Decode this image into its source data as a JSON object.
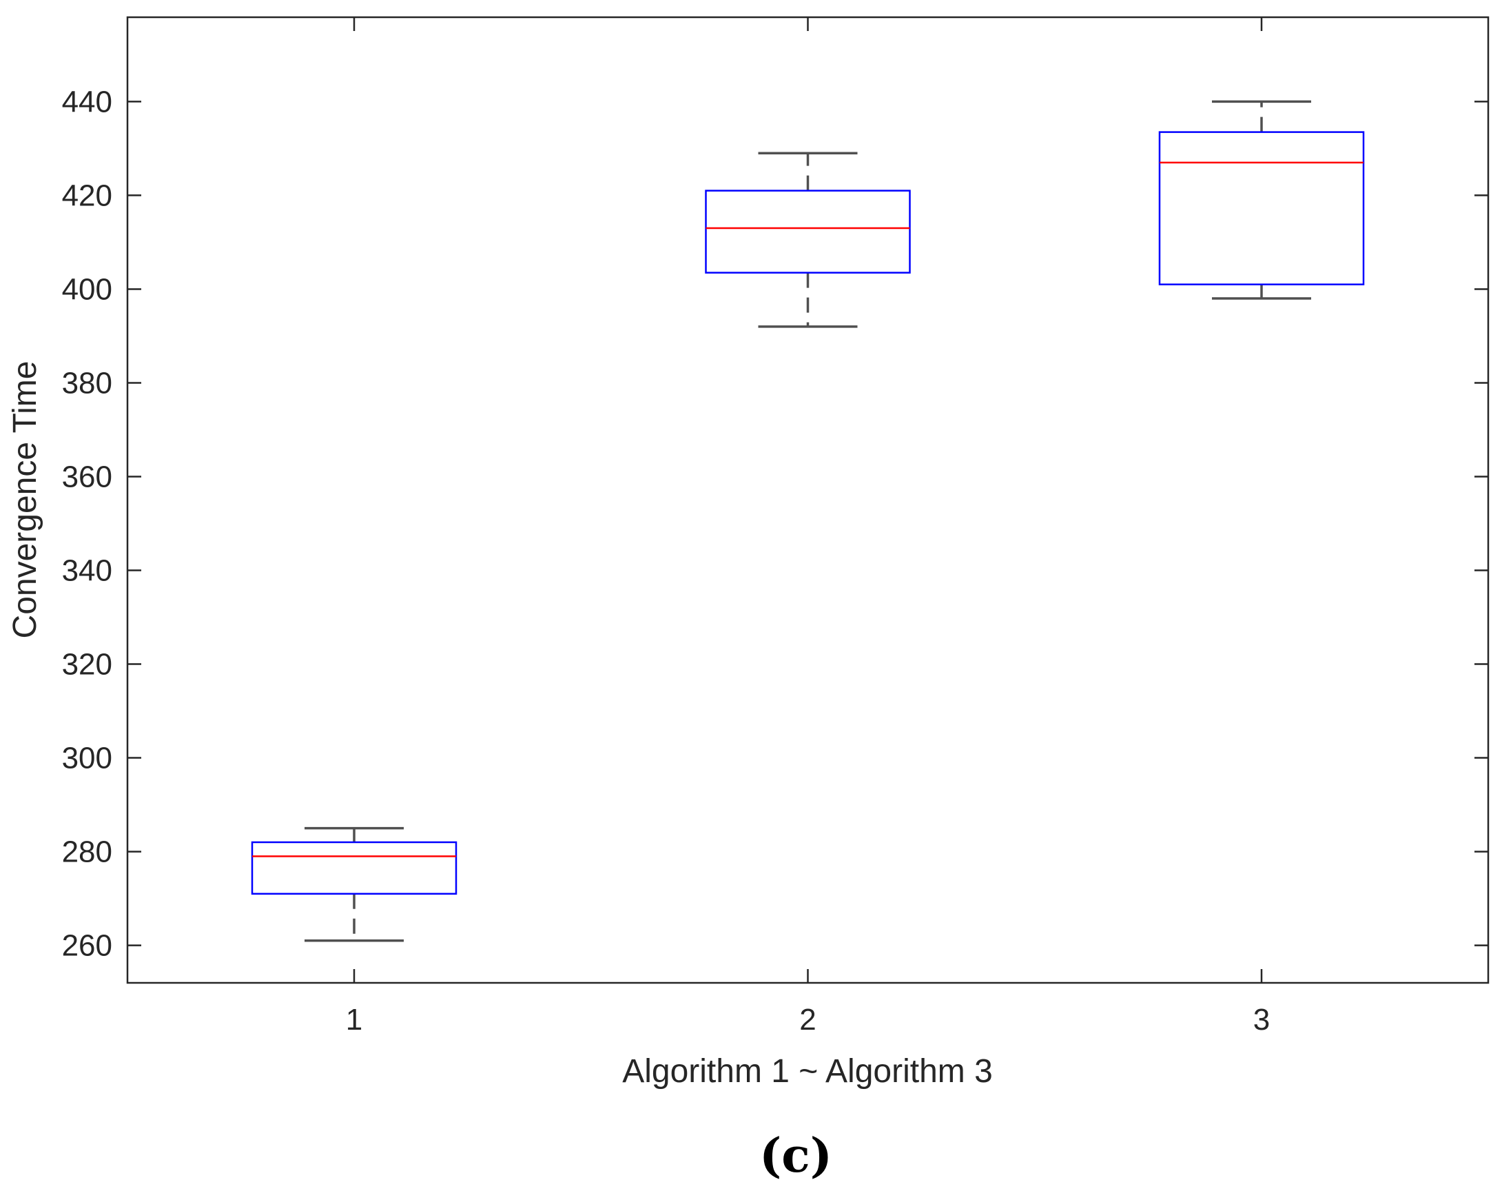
{
  "chart_data": {
    "type": "boxplot",
    "title": "",
    "xlabel": "Algorithm 1 ~ Algorithm 3",
    "ylabel": "Convergence Time",
    "categories": [
      "1",
      "2",
      "3"
    ],
    "ylim": [
      252,
      458
    ],
    "yticks": [
      260,
      280,
      300,
      320,
      340,
      360,
      380,
      400,
      420,
      440
    ],
    "grid": false,
    "boxes": [
      {
        "category": "1",
        "whisker_low": 261,
        "q1": 271,
        "median": 279,
        "q3": 282,
        "whisker_high": 285
      },
      {
        "category": "2",
        "whisker_low": 392,
        "q1": 403.5,
        "median": 413,
        "q3": 421,
        "whisker_high": 429
      },
      {
        "category": "3",
        "whisker_low": 398,
        "q1": 401,
        "median": 427,
        "q3": 433.5,
        "whisker_high": 440
      }
    ],
    "colors": {
      "box": "#0000ff",
      "median": "#ff0000",
      "whisker": "#505050",
      "axis": "#262626"
    },
    "panel_label": "(c)"
  }
}
